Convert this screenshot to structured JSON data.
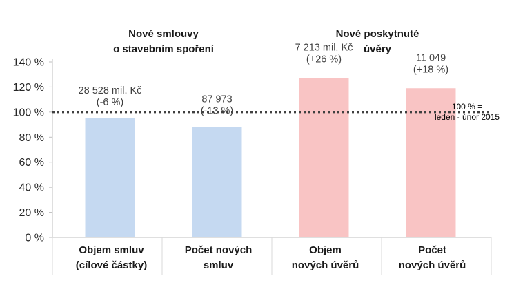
{
  "chart_data": {
    "type": "bar",
    "categories": [
      [
        "Objem smluv",
        "(cílové částky)"
      ],
      [
        "Počet  nových",
        "smluv"
      ],
      [
        "Objem",
        "nových úvěrů"
      ],
      [
        "Počet",
        "nových úvěrů"
      ]
    ],
    "values": [
      95,
      88,
      127,
      119
    ],
    "data_labels": [
      [
        "28 528 mil. Kč",
        "(-6 %)"
      ],
      [
        "87 973",
        "(-13 %)"
      ],
      [
        "7 213 mil. Kč",
        "(+26 %)"
      ],
      [
        "11 049",
        "(+18 %)"
      ]
    ],
    "group_titles": [
      [
        "Nové smlouvy",
        "o stavebním spoření"
      ],
      [
        "Nové poskytnuté",
        "úvěry"
      ]
    ],
    "ylim": [
      0,
      140
    ],
    "yticks": [
      0,
      20,
      40,
      60,
      80,
      100,
      120,
      140
    ],
    "ytick_labels": [
      "0 %",
      "20 %",
      "40 %",
      "60 %",
      "80 %",
      "100 %",
      "120 %",
      "140 %"
    ],
    "reference_line": {
      "value": 100,
      "label": [
        "100 % =",
        "leden - únor 2015"
      ]
    },
    "bar_colors": [
      "#c5d9f1",
      "#c5d9f1",
      "#f9c4c4",
      "#f9c4c4"
    ],
    "grid": false,
    "xlabel": "",
    "ylabel": ""
  }
}
